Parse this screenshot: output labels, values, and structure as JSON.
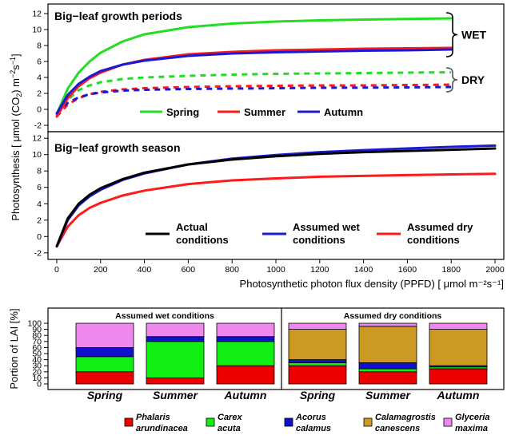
{
  "chart_data": [
    {
      "type": "line",
      "title": "Big−leaf growth periods",
      "x": [
        0,
        50,
        100,
        150,
        200,
        300,
        400,
        600,
        800,
        1000,
        1200,
        1400,
        1600,
        1800
      ],
      "xlim": [
        -40,
        2040
      ],
      "ylim": [
        -2.8,
        13.2
      ],
      "yticks": [
        -2,
        0,
        2,
        4,
        6,
        8,
        10,
        12
      ],
      "groups": [
        {
          "bracket": "WET",
          "style": "solid",
          "series": [
            {
              "name": "Spring",
              "color": "#22dd22",
              "values": [
                -0.6,
                2.6,
                4.6,
                6.0,
                7.1,
                8.5,
                9.4,
                10.3,
                10.75,
                11.0,
                11.15,
                11.25,
                11.32,
                11.4
              ]
            },
            {
              "name": "Summer",
              "color": "#ff1a1a",
              "values": [
                -0.9,
                1.4,
                2.9,
                3.9,
                4.6,
                5.6,
                6.2,
                6.9,
                7.2,
                7.4,
                7.5,
                7.6,
                7.65,
                7.7
              ]
            },
            {
              "name": "Autumn",
              "color": "#1a1ad6",
              "values": [
                -0.5,
                1.8,
                3.2,
                4.1,
                4.8,
                5.6,
                6.1,
                6.7,
                7.0,
                7.15,
                7.25,
                7.35,
                7.4,
                7.5
              ]
            }
          ]
        },
        {
          "bracket": "DRY",
          "style": "dashed",
          "series": [
            {
              "name": "Spring",
              "color": "#22dd22",
              "values": [
                -0.6,
                1.2,
                2.4,
                3.0,
                3.4,
                3.8,
                4.0,
                4.2,
                4.35,
                4.45,
                4.5,
                4.55,
                4.6,
                4.65
              ]
            },
            {
              "name": "Summer",
              "color": "#ff1a1a",
              "values": [
                -0.9,
                0.6,
                1.4,
                1.9,
                2.2,
                2.5,
                2.65,
                2.8,
                2.9,
                2.95,
                3.0,
                3.0,
                3.05,
                3.1
              ]
            },
            {
              "name": "Autumn",
              "color": "#1a1ad6",
              "values": [
                -0.5,
                0.8,
                1.5,
                1.9,
                2.1,
                2.35,
                2.45,
                2.55,
                2.6,
                2.65,
                2.7,
                2.72,
                2.75,
                2.8
              ]
            }
          ]
        }
      ],
      "legend": {
        "placement": "bottom",
        "entries": [
          "Spring",
          "Summer",
          "Autumn"
        ]
      },
      "brackets": [
        "WET",
        "DRY"
      ]
    },
    {
      "type": "line",
      "title": "Big−leaf growth season",
      "x": [
        0,
        50,
        100,
        150,
        200,
        300,
        400,
        600,
        800,
        1000,
        1200,
        1400,
        1600,
        1800,
        2000
      ],
      "xlim": [
        -40,
        2040
      ],
      "ylim": [
        -2.8,
        12.8
      ],
      "yticks": [
        -2,
        0,
        2,
        4,
        6,
        8,
        10,
        12
      ],
      "xticks": [
        0,
        200,
        400,
        600,
        800,
        1000,
        1200,
        1400,
        1600,
        1800,
        2000
      ],
      "xlabel": "Photosynthetic photon flux density (PPFD) [ μmol m⁻²s⁻¹]",
      "series": [
        {
          "name": "Actual conditions",
          "color": "#000000",
          "values": [
            -1.2,
            2.2,
            4.0,
            5.1,
            5.9,
            7.0,
            7.8,
            8.8,
            9.4,
            9.8,
            10.1,
            10.3,
            10.45,
            10.6,
            10.75
          ]
        },
        {
          "name": "Assumed wet conditions",
          "color": "#1a1ad6",
          "values": [
            -1.2,
            2.0,
            3.8,
            4.9,
            5.7,
            6.9,
            7.7,
            8.8,
            9.5,
            9.95,
            10.3,
            10.55,
            10.75,
            10.95,
            11.1
          ]
        },
        {
          "name": "Assumed dry conditions",
          "color": "#ff1a1a",
          "values": [
            -1.2,
            1.2,
            2.6,
            3.5,
            4.1,
            5.0,
            5.6,
            6.4,
            6.85,
            7.1,
            7.3,
            7.4,
            7.5,
            7.58,
            7.65
          ]
        }
      ],
      "legend": {
        "placement": "bottom",
        "entries": [
          {
            "line1": "Actual",
            "line2": "conditions",
            "color": "#000000"
          },
          {
            "line1": "Assumed wet",
            "line2": "conditions",
            "color": "#1a1ad6"
          },
          {
            "line1": "Assumed dry",
            "line2": "conditions",
            "color": "#ff1a1a"
          }
        ]
      }
    },
    {
      "type": "bar",
      "stacked": true,
      "ylabel": "Portion of LAI [%]",
      "ylim": [
        0,
        100
      ],
      "yticks": [
        0,
        10,
        20,
        30,
        40,
        50,
        60,
        70,
        80,
        90,
        100
      ],
      "panels": [
        {
          "title": "Assumed wet conditions",
          "categories": [
            "Spring",
            "Summer",
            "Autumn"
          ]
        },
        {
          "title": "Assumed dry conditions",
          "categories": [
            "Spring",
            "Summer",
            "Autumn"
          ]
        }
      ],
      "species": [
        {
          "line1": "Phalaris",
          "line2": "arundinacea",
          "color": "#ee0000",
          "values": [
            20,
            10,
            30,
            30,
            20,
            25
          ]
        },
        {
          "line1": "Carex",
          "line2": "acuta",
          "color": "#11ee11",
          "values": [
            25,
            60,
            40,
            5,
            5,
            3
          ]
        },
        {
          "line1": "Acorus",
          "line2": "calamus",
          "color": "#1111cc",
          "values": [
            15,
            8,
            8,
            5,
            10,
            2
          ]
        },
        {
          "line1": "Calamagrostis",
          "line2": "canescens",
          "color": "#cc9922",
          "values": [
            0,
            0,
            0,
            50,
            60,
            60
          ]
        },
        {
          "line1": "Glyceria",
          "line2": "maxima",
          "color": "#ee88ee",
          "values": [
            40,
            22,
            22,
            10,
            5,
            10
          ]
        }
      ]
    }
  ]
}
